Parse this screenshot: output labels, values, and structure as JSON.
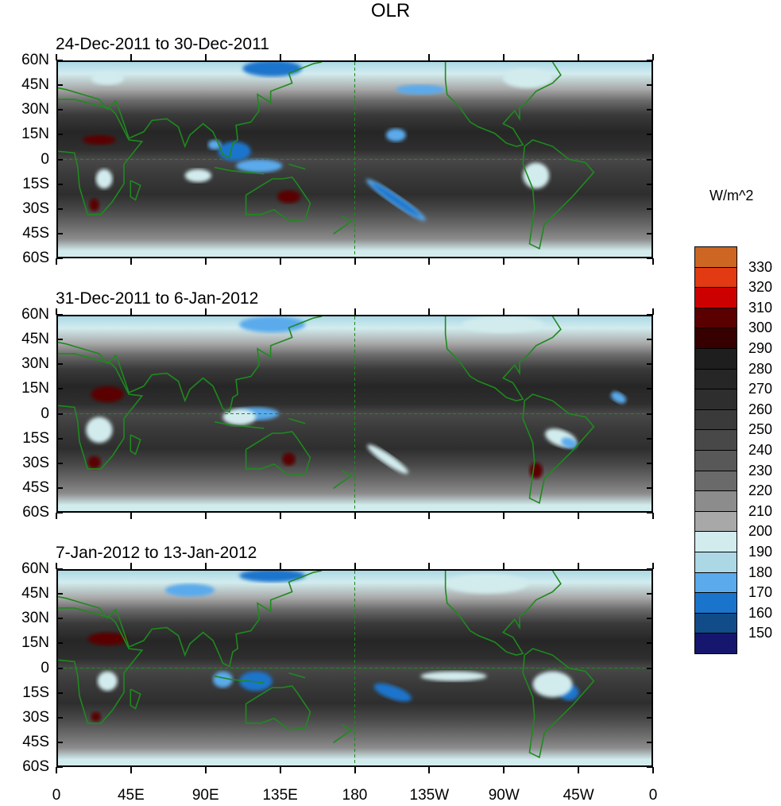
{
  "title": "OLR",
  "panels": [
    {
      "title": "24-Dec-2011 to 30-Dec-2011"
    },
    {
      "title": "31-Dec-2011 to 6-Jan-2012"
    },
    {
      "title": "7-Jan-2012 to 13-Jan-2012"
    }
  ],
  "lat_labels": [
    "60N",
    "45N",
    "30N",
    "15N",
    "0",
    "15S",
    "30S",
    "45S",
    "60S"
  ],
  "lon_labels": [
    "0",
    "45E",
    "90E",
    "135E",
    "180",
    "135W",
    "90W",
    "45W",
    "0"
  ],
  "colorbar": {
    "units": "W/m^2",
    "levels": [
      "330",
      "320",
      "310",
      "300",
      "290",
      "280",
      "270",
      "260",
      "250",
      "240",
      "230",
      "220",
      "210",
      "200",
      "190",
      "180",
      "170",
      "160",
      "150"
    ],
    "colors": [
      "#CC6622",
      "#E23A12",
      "#CC0000",
      "#5A0000",
      "#360000",
      "#1E1E1E",
      "#262626",
      "#2E2E2E",
      "#3A3A3A",
      "#484848",
      "#585858",
      "#6A6A6A",
      "#8C8C8C",
      "#A8A8A8",
      "#D2ECEE",
      "#ACD8E6",
      "#5AAAEC",
      "#1A74CC",
      "#124C88",
      "#16166E"
    ]
  },
  "colors": {
    "coastline": "#1E8A1E"
  }
}
